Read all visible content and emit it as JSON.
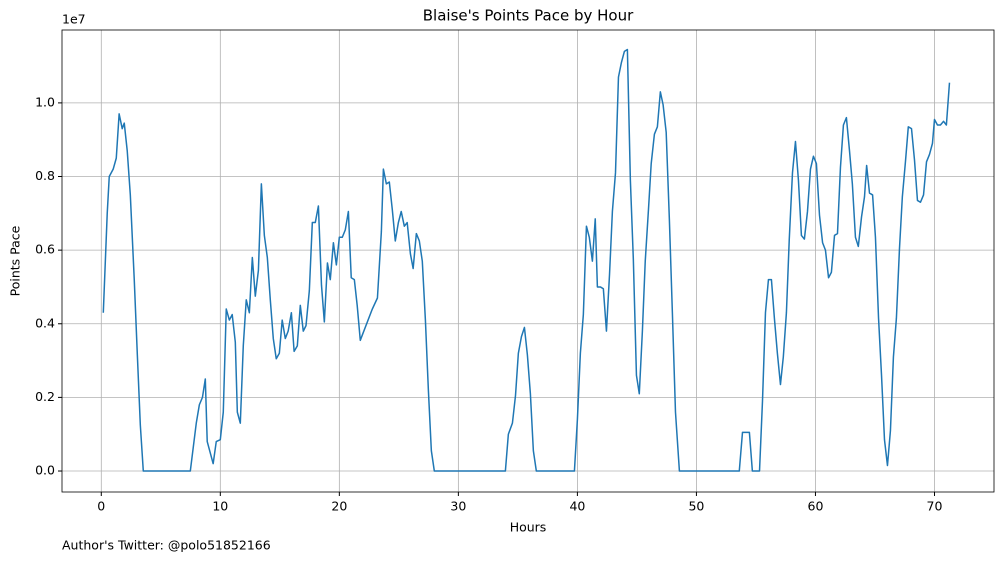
{
  "chart_data": {
    "type": "line",
    "title": "Blaise's Points Pace by Hour",
    "x_label": "Hours",
    "y_label": "Points Pace",
    "y_offset_label": "1e7",
    "annotation": "Author's Twitter: @polo51852166",
    "color": "#1f77b4",
    "grid": true,
    "xlim": [
      -3.3,
      75.0
    ],
    "ylim": [
      -0.057,
      1.198
    ],
    "xticks": [
      0,
      10,
      20,
      30,
      40,
      50,
      60,
      70
    ],
    "yticks": [
      {
        "value": 0,
        "label": "0.0"
      },
      0.2,
      0.4,
      0.6,
      0.8,
      {
        "value": 1,
        "label": "1.0"
      }
    ],
    "x": [
      0.17,
      0.5,
      0.67,
      1.0,
      1.26,
      1.5,
      1.76,
      1.93,
      2.18,
      2.44,
      2.77,
      3.03,
      3.28,
      3.53,
      7.48,
      7.98,
      8.24,
      8.5,
      8.74,
      8.9,
      9.4,
      9.66,
      10.0,
      10.25,
      10.5,
      10.76,
      11.0,
      11.26,
      11.43,
      11.68,
      11.93,
      12.18,
      12.44,
      12.69,
      12.94,
      13.2,
      13.45,
      13.7,
      13.95,
      14.2,
      14.45,
      14.7,
      14.96,
      15.2,
      15.46,
      15.7,
      15.97,
      16.2,
      16.47,
      16.72,
      16.97,
      17.2,
      17.48,
      17.73,
      17.98,
      18.24,
      18.5,
      18.74,
      19.0,
      19.24,
      19.5,
      19.75,
      20.0,
      20.25,
      20.5,
      20.76,
      21.0,
      21.26,
      21.5,
      21.76,
      22.77,
      23.2,
      23.53,
      23.7,
      23.95,
      24.2,
      24.45,
      24.7,
      24.96,
      25.2,
      25.46,
      25.7,
      25.97,
      26.2,
      26.47,
      26.72,
      26.97,
      27.23,
      27.48,
      27.73,
      27.98,
      33.95,
      34.2,
      34.54,
      34.8,
      35.04,
      35.3,
      35.55,
      35.8,
      36.05,
      36.3,
      36.55,
      39.75,
      40.0,
      40.25,
      40.5,
      40.76,
      41.0,
      41.26,
      41.5,
      41.68,
      41.93,
      42.18,
      42.44,
      42.7,
      42.94,
      43.2,
      43.45,
      43.7,
      43.95,
      44.2,
      44.45,
      44.7,
      44.96,
      45.2,
      45.46,
      45.7,
      45.97,
      46.2,
      46.47,
      46.72,
      46.97,
      47.2,
      47.46,
      47.73,
      47.98,
      48.24,
      48.57,
      53.6,
      53.87,
      54.45,
      54.7,
      55.3,
      55.55,
      55.8,
      56.05,
      56.3,
      56.55,
      56.8,
      57.06,
      57.3,
      57.56,
      57.8,
      58.07,
      58.32,
      58.57,
      58.82,
      59.07,
      59.33,
      59.58,
      59.83,
      60.08,
      60.34,
      60.6,
      60.84,
      61.1,
      61.34,
      61.6,
      61.85,
      62.1,
      62.35,
      62.6,
      62.86,
      63.1,
      63.36,
      63.6,
      63.87,
      64.12,
      64.3,
      64.54,
      64.8,
      65.04,
      65.3,
      65.55,
      65.8,
      66.05,
      66.3,
      66.55,
      66.8,
      67.06,
      67.3,
      67.56,
      67.8,
      68.07,
      68.32,
      68.57,
      68.82,
      69.08,
      69.33,
      69.58,
      69.83,
      70.0,
      70.25,
      70.5,
      70.76,
      71.0,
      71.26
    ],
    "values": [
      0.43,
      0.7,
      0.8,
      0.82,
      0.85,
      0.97,
      0.93,
      0.945,
      0.87,
      0.75,
      0.52,
      0.315,
      0.125,
      0,
      0,
      0.13,
      0.18,
      0.2,
      0.25,
      0.08,
      0.02,
      0.08,
      0.085,
      0.16,
      0.44,
      0.41,
      0.425,
      0.35,
      0.16,
      0.13,
      0.34,
      0.465,
      0.43,
      0.58,
      0.475,
      0.545,
      0.78,
      0.64,
      0.58,
      0.465,
      0.36,
      0.305,
      0.32,
      0.41,
      0.36,
      0.38,
      0.43,
      0.325,
      0.34,
      0.45,
      0.38,
      0.395,
      0.49,
      0.675,
      0.675,
      0.72,
      0.505,
      0.405,
      0.565,
      0.52,
      0.62,
      0.56,
      0.635,
      0.635,
      0.655,
      0.705,
      0.525,
      0.52,
      0.45,
      0.355,
      0.44,
      0.47,
      0.65,
      0.82,
      0.78,
      0.785,
      0.71,
      0.625,
      0.675,
      0.705,
      0.665,
      0.675,
      0.59,
      0.55,
      0.645,
      0.625,
      0.57,
      0.41,
      0.22,
      0.055,
      0,
      0,
      0.1,
      0.13,
      0.205,
      0.32,
      0.365,
      0.39,
      0.315,
      0.21,
      0.055,
      0,
      0,
      0.14,
      0.32,
      0.425,
      0.665,
      0.635,
      0.57,
      0.685,
      0.5,
      0.5,
      0.495,
      0.38,
      0.535,
      0.705,
      0.81,
      1.07,
      1.11,
      1.14,
      1.145,
      0.79,
      0.575,
      0.26,
      0.21,
      0.38,
      0.57,
      0.71,
      0.835,
      0.915,
      0.935,
      1.03,
      0.995,
      0.92,
      0.68,
      0.43,
      0.16,
      0,
      0,
      0.105,
      0.105,
      0,
      0,
      0.19,
      0.43,
      0.52,
      0.52,
      0.415,
      0.32,
      0.235,
      0.31,
      0.43,
      0.63,
      0.81,
      0.895,
      0.79,
      0.64,
      0.63,
      0.705,
      0.82,
      0.855,
      0.835,
      0.695,
      0.62,
      0.6,
      0.525,
      0.54,
      0.64,
      0.645,
      0.825,
      0.94,
      0.96,
      0.87,
      0.78,
      0.635,
      0.61,
      0.69,
      0.745,
      0.83,
      0.755,
      0.75,
      0.635,
      0.415,
      0.26,
      0.085,
      0.015,
      0.11,
      0.31,
      0.415,
      0.605,
      0.745,
      0.84,
      0.935,
      0.93,
      0.845,
      0.735,
      0.73,
      0.75,
      0.84,
      0.86,
      0.89,
      0.955,
      0.94,
      0.94,
      0.95,
      0.94,
      1.055
    ]
  }
}
